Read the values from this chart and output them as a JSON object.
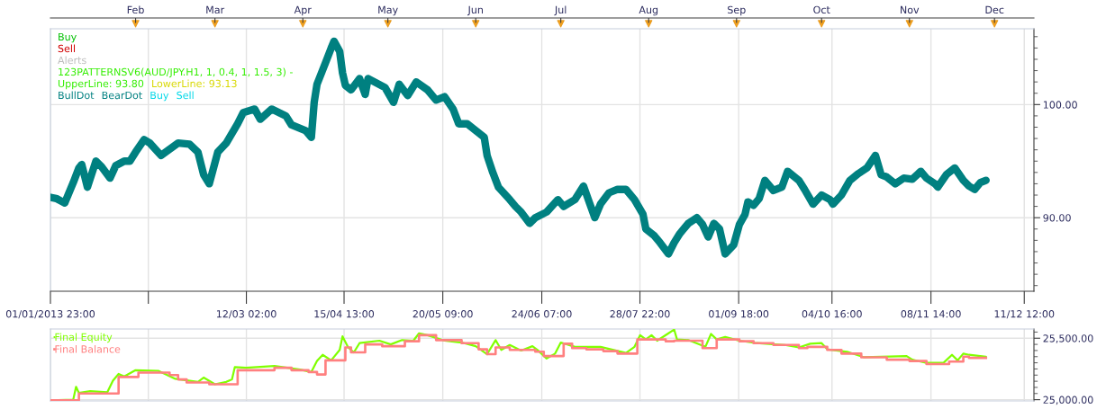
{
  "chart_data": [
    {
      "type": "line",
      "annotations": [
        "Buy",
        "Sell",
        "Alerts",
        "123PATTERNSV6(AUD/JPY.H1, 1, 0.4, 1, 1.5, 3) -",
        "UpperLine: 93.80",
        "LowerLine: 93.13",
        "BullDot",
        "BearDot",
        "Buy",
        "Sell"
      ],
      "x": [
        "2013-01-01T23:00",
        "2013-01-04",
        "2013-01-07",
        "2013-01-10",
        "2013-01-12",
        "2013-01-13",
        "2013-01-15",
        "2013-01-18",
        "2013-01-20",
        "2013-01-23",
        "2013-01-25",
        "2013-01-28",
        "2013-01-30",
        "2013-02-01",
        "2013-02-04",
        "2013-02-06",
        "2013-02-10",
        "2013-02-16",
        "2013-02-20",
        "2013-02-23",
        "2013-02-25",
        "2013-02-27",
        "2013-03-02",
        "2013-03-05",
        "2013-03-09",
        "2013-03-11",
        "2013-03-15",
        "2013-03-17",
        "2013-03-21",
        "2013-03-26",
        "2013-03-28",
        "2013-04-02",
        "2013-04-04",
        "2013-04-05",
        "2013-04-06",
        "2013-04-09",
        "2013-04-11",
        "2013-04-12",
        "2013-04-14",
        "2013-04-15",
        "2013-04-16",
        "2013-04-18",
        "2013-04-21",
        "2013-04-23",
        "2013-04-24",
        "2013-04-27",
        "2013-04-30",
        "2013-05-03",
        "2013-05-05",
        "2013-05-08",
        "2013-05-11",
        "2013-05-15",
        "2013-05-18",
        "2013-05-21",
        "2013-05-24",
        "2013-05-26",
        "2013-05-29",
        "2013-06-01",
        "2013-06-04",
        "2013-06-05",
        "2013-06-07",
        "2013-06-09",
        "2013-06-13",
        "2013-06-15",
        "2013-06-17",
        "2013-06-20",
        "2013-06-22",
        "2013-06-26",
        "2013-06-30",
        "2013-07-02",
        "2013-07-06",
        "2013-07-09",
        "2013-07-11",
        "2013-07-13",
        "2013-07-15",
        "2013-07-18",
        "2013-07-21",
        "2013-07-24",
        "2013-07-27",
        "2013-07-30",
        "2013-07-31",
        "2013-08-03",
        "2013-08-05",
        "2013-08-08",
        "2013-08-10",
        "2013-08-12",
        "2013-08-15",
        "2013-08-18",
        "2013-08-20",
        "2013-08-22",
        "2013-08-24",
        "2013-08-26",
        "2013-08-28",
        "2013-08-31",
        "2013-09-02",
        "2013-09-04",
        "2013-09-05",
        "2013-09-07",
        "2013-09-09",
        "2013-09-11",
        "2013-09-14",
        "2013-09-17",
        "2013-09-19",
        "2013-09-23",
        "2013-09-25",
        "2013-09-28",
        "2013-10-01",
        "2013-10-04",
        "2013-10-05",
        "2013-10-08",
        "2013-10-11",
        "2013-10-14",
        "2013-10-17",
        "2013-10-20",
        "2013-10-22",
        "2013-10-24",
        "2013-10-27",
        "2013-10-30",
        "2013-11-02",
        "2013-11-05",
        "2013-11-07",
        "2013-11-10",
        "2013-11-11",
        "2013-11-14",
        "2013-11-17",
        "2013-11-20",
        "2013-11-22",
        "2013-11-24",
        "2013-11-26",
        "2013-11-28"
      ],
      "series": [
        {
          "color": "#008080",
          "values": [
            91.8,
            91.7,
            91.3,
            93.1,
            94.4,
            94.7,
            92.7,
            95.0,
            94.5,
            93.5,
            94.6,
            95.0,
            95.0,
            95.8,
            96.9,
            96.6,
            95.5,
            96.6,
            96.5,
            95.8,
            93.8,
            93.0,
            95.8,
            96.6,
            98.3,
            99.3,
            99.6,
            98.7,
            99.6,
            99.0,
            98.2,
            97.7,
            97.1,
            100.2,
            101.8,
            103.7,
            105.0,
            105.6,
            104.7,
            102.8,
            101.7,
            101.3,
            102.3,
            100.9,
            102.3,
            101.9,
            101.5,
            100.2,
            101.8,
            100.8,
            102.0,
            101.3,
            100.4,
            100.7,
            99.6,
            98.3,
            98.3,
            97.7,
            97.1,
            95.5,
            94.0,
            92.7,
            91.6,
            91.0,
            90.5,
            89.5,
            90.0,
            90.5,
            91.6,
            91.0,
            91.6,
            92.8,
            91.4,
            90.0,
            91.2,
            92.2,
            92.5,
            92.5,
            91.6,
            90.3,
            89.0,
            88.4,
            87.8,
            86.8,
            87.8,
            88.6,
            89.5,
            90.0,
            89.4,
            88.3,
            89.5,
            89.0,
            86.8,
            87.6,
            89.4,
            90.3,
            91.4,
            91.1,
            91.7,
            93.3,
            92.4,
            92.7,
            94.1,
            93.3,
            92.5,
            91.2,
            92.0,
            91.6,
            91.2,
            92.0,
            93.3,
            93.9,
            94.4,
            95.5,
            93.8,
            93.6,
            93.0,
            93.5,
            93.4,
            94.1,
            93.5,
            93.0,
            92.7,
            93.8,
            94.4,
            93.3,
            92.8,
            92.5,
            93.1,
            93.3
          ]
        }
      ],
      "xlim": [
        "2013-01-01T23:00",
        "2013-12-14T22:00"
      ],
      "xticks": [
        {
          "value": "2013-01-01T23:00",
          "label": "01/01/2013 23:00"
        },
        {
          "value": "2013-02-05T12:00",
          "label": null
        },
        {
          "value": "2013-03-12T02:00",
          "label": "12/03 02:00"
        },
        {
          "value": "2013-04-15T13:00",
          "label": "15/04 13:00"
        },
        {
          "value": "2013-05-20T09:00",
          "label": "20/05 09:00"
        },
        {
          "value": "2013-06-24T07:00",
          "label": "24/06 07:00"
        },
        {
          "value": "2013-07-28T22:00",
          "label": "28/07 22:00"
        },
        {
          "value": "2013-09-01T18:00",
          "label": "01/09 18:00"
        },
        {
          "value": "2013-10-04T16:00",
          "label": "04/10 16:00"
        },
        {
          "value": "2013-11-08T14:00",
          "label": "08/11 14:00"
        },
        {
          "value": "2013-12-11T12:00",
          "label": "11/12 12:00"
        }
      ],
      "x2lim": [
        "2013-01-01T23:00",
        "2013-12-14T22:00"
      ],
      "x2ticks": [
        {
          "value": "2013-02-01",
          "label": "Feb"
        },
        {
          "value": "2013-03-01",
          "label": "Mar"
        },
        {
          "value": "2013-04-01",
          "label": "Apr"
        },
        {
          "value": "2013-05-01",
          "label": "May"
        },
        {
          "value": "2013-06-01",
          "label": "Jun"
        },
        {
          "value": "2013-07-01",
          "label": "Jul"
        },
        {
          "value": "2013-08-01",
          "label": "Aug"
        },
        {
          "value": "2013-09-01",
          "label": "Sep"
        },
        {
          "value": "2013-10-01",
          "label": "Oct"
        },
        {
          "value": "2013-11-01",
          "label": "Nov"
        },
        {
          "value": "2013-12-01",
          "label": "Dec"
        }
      ],
      "ylim": [
        83.5,
        106.7
      ],
      "yticks": [
        {
          "value": 84,
          "label": null
        },
        {
          "value": 85,
          "label": null
        },
        {
          "value": 86,
          "label": null
        },
        {
          "value": 87,
          "label": null
        },
        {
          "value": 88,
          "label": null
        },
        {
          "value": 89,
          "label": null
        },
        {
          "value": 90,
          "label": "90.00"
        },
        {
          "value": 91,
          "label": null
        },
        {
          "value": 92,
          "label": null
        },
        {
          "value": 93,
          "label": null
        },
        {
          "value": 94,
          "label": null
        },
        {
          "value": 95,
          "label": null
        },
        {
          "value": 96,
          "label": null
        },
        {
          "value": 97,
          "label": null
        },
        {
          "value": 98,
          "label": null
        },
        {
          "value": 99,
          "label": null
        },
        {
          "value": 100,
          "label": "100.00"
        },
        {
          "value": 101,
          "label": null
        },
        {
          "value": 102,
          "label": null
        },
        {
          "value": 103,
          "label": null
        },
        {
          "value": 104,
          "label": null
        },
        {
          "value": 105,
          "label": null
        },
        {
          "value": 106,
          "label": null
        }
      ],
      "grid": true
    },
    {
      "type": "line",
      "series": [
        {
          "name": "Final Equity",
          "color": "#80ff00",
          "x": [
            "2013-01-01T23:00",
            "2013-01-10",
            "2013-01-11",
            "2013-01-12",
            "2013-01-16",
            "2013-01-22",
            "2013-01-24",
            "2013-01-26",
            "2013-01-28",
            "2013-02-01",
            "2013-02-09",
            "2013-02-15",
            "2013-02-23",
            "2013-02-25",
            "2013-03-01",
            "2013-03-05",
            "2013-03-07",
            "2013-03-08",
            "2013-03-12",
            "2013-03-22",
            "2013-03-31",
            "2013-04-04",
            "2013-04-06",
            "2013-04-08",
            "2013-04-11",
            "2013-04-14",
            "2013-04-15",
            "2013-04-17",
            "2013-04-19",
            "2013-04-21",
            "2013-04-28",
            "2013-05-02",
            "2013-05-06",
            "2013-05-10",
            "2013-05-12",
            "2013-05-15",
            "2013-05-21",
            "2013-05-27",
            "2013-06-01",
            "2013-06-05",
            "2013-06-08",
            "2013-06-10",
            "2013-06-13",
            "2013-06-17",
            "2013-06-21",
            "2013-06-23",
            "2013-06-26",
            "2013-06-29",
            "2013-07-01",
            "2013-07-06",
            "2013-07-15",
            "2013-07-24",
            "2013-07-27",
            "2013-07-29",
            "2013-07-31",
            "2013-08-02",
            "2013-08-04",
            "2013-08-08",
            "2013-08-10",
            "2013-08-11",
            "2013-08-15",
            "2013-08-21",
            "2013-08-23",
            "2013-08-25",
            "2013-08-28",
            "2013-09-02",
            "2013-09-08",
            "2013-09-18",
            "2013-09-23",
            "2013-09-27",
            "2013-10-01",
            "2013-10-03",
            "2013-10-10",
            "2013-10-16",
            "2013-10-31",
            "2013-11-02",
            "2013-11-07",
            "2013-11-13",
            "2013-11-16",
            "2013-11-18",
            "2013-11-20",
            "2013-11-22",
            "2013-11-26",
            "2013-11-28"
          ],
          "values": [
            24995,
            25000,
            25105,
            25055,
            25070,
            25060,
            25155,
            25210,
            25190,
            25240,
            25235,
            25170,
            25145,
            25180,
            25125,
            25145,
            25165,
            25265,
            25260,
            25275,
            25245,
            25225,
            25315,
            25365,
            25320,
            25405,
            25515,
            25425,
            25385,
            25460,
            25480,
            25450,
            25485,
            25480,
            25540,
            25525,
            25480,
            25465,
            25435,
            25370,
            25485,
            25405,
            25445,
            25400,
            25435,
            25400,
            25335,
            25375,
            25465,
            25430,
            25430,
            25380,
            25430,
            25525,
            25490,
            25525,
            25480,
            25540,
            25570,
            25490,
            25485,
            25430,
            25535,
            25490,
            25510,
            25480,
            25460,
            25445,
            25425,
            25455,
            25460,
            25410,
            25390,
            25345,
            25355,
            25325,
            25300,
            25300,
            25365,
            25320,
            25375,
            25365,
            25355,
            25350
          ]
        },
        {
          "name": "Final Balance",
          "type": "step",
          "color": "#ff8080",
          "x": [
            "2013-01-01T23:00",
            "2013-01-12",
            "2013-01-26",
            "2013-02-02",
            "2013-02-13",
            "2013-02-16",
            "2013-02-19",
            "2013-02-27",
            "2013-03-09",
            "2013-03-22",
            "2013-03-28",
            "2013-04-03",
            "2013-04-06",
            "2013-04-09",
            "2013-04-16",
            "2013-04-18",
            "2013-04-23",
            "2013-04-29",
            "2013-05-07",
            "2013-05-12",
            "2013-05-18",
            "2013-05-27",
            "2013-06-02",
            "2013-06-05",
            "2013-06-08",
            "2013-06-13",
            "2013-06-22",
            "2013-06-25",
            "2013-07-02",
            "2013-07-05",
            "2013-07-10",
            "2013-07-16",
            "2013-07-21",
            "2013-07-28",
            "2013-08-07",
            "2013-08-10",
            "2013-08-20",
            "2013-08-25",
            "2013-09-02",
            "2013-09-07",
            "2013-09-14",
            "2013-09-23",
            "2013-09-26",
            "2013-10-03",
            "2013-10-08",
            "2013-10-15",
            "2013-10-24",
            "2013-11-01",
            "2013-11-07",
            "2013-11-15",
            "2013-11-20",
            "2013-11-22",
            "2013-11-28"
          ],
          "values": [
            24995,
            25050,
            25185,
            25220,
            25200,
            25165,
            25140,
            25125,
            25240,
            25260,
            25240,
            25225,
            25205,
            25320,
            25425,
            25385,
            25450,
            25435,
            25475,
            25525,
            25485,
            25460,
            25410,
            25370,
            25425,
            25405,
            25390,
            25355,
            25455,
            25420,
            25410,
            25395,
            25375,
            25490,
            25475,
            25480,
            25420,
            25490,
            25475,
            25460,
            25445,
            25420,
            25430,
            25405,
            25375,
            25345,
            25325,
            25315,
            25290,
            25310,
            25350,
            25340,
            25340
          ]
        }
      ],
      "xlim": [
        "2013-01-01T23:00",
        "2013-12-14T22:00"
      ],
      "xticks": [
        {
          "value": "2013-01-01T23:00",
          "label": null
        },
        {
          "value": "2013-02-05T12:00",
          "label": null
        },
        {
          "value": "2013-03-12T02:00",
          "label": null
        },
        {
          "value": "2013-04-15T13:00",
          "label": null
        },
        {
          "value": "2013-05-20T09:00",
          "label": null
        },
        {
          "value": "2013-06-24T07:00",
          "label": null
        },
        {
          "value": "2013-07-28T22:00",
          "label": null
        },
        {
          "value": "2013-09-01T18:00",
          "label": null
        },
        {
          "value": "2013-10-04T16:00",
          "label": null
        },
        {
          "value": "2013-11-08T14:00",
          "label": null
        },
        {
          "value": "2013-12-11T12:00",
          "label": null
        }
      ],
      "tick_labels": "y",
      "ylim": [
        24990,
        25575
      ],
      "yticks": [
        {
          "value": 25000,
          "label": "25,000.00"
        },
        {
          "value": 25050,
          "label": null
        },
        {
          "value": 25100,
          "label": null
        },
        {
          "value": 25150,
          "label": null
        },
        {
          "value": 25200,
          "label": null
        },
        {
          "value": 25250,
          "label": null
        },
        {
          "value": 25300,
          "label": null
        },
        {
          "value": 25350,
          "label": null
        },
        {
          "value": 25400,
          "label": null
        },
        {
          "value": 25450,
          "label": null
        },
        {
          "value": 25500,
          "label": "25,500.00"
        },
        {
          "value": 25550,
          "label": null
        }
      ],
      "grid": true,
      "legend": "top left"
    }
  ]
}
